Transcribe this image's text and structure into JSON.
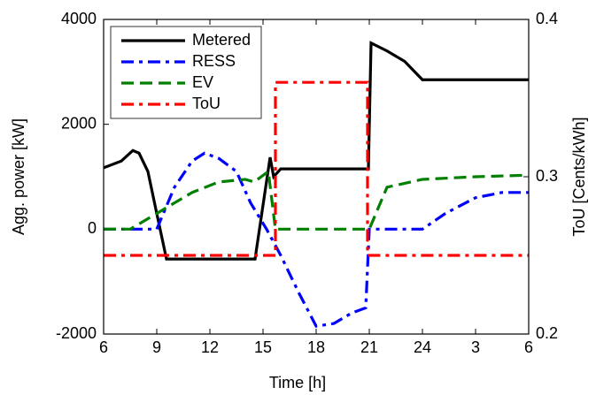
{
  "chart_data": {
    "type": "line",
    "xlabel": "Time [h]",
    "ylabel": "Agg. power [kW]",
    "y2label": "ToU [Cents/kWh]",
    "xlim": [
      6,
      30
    ],
    "xticks": [
      6,
      9,
      12,
      15,
      18,
      21,
      24,
      {
        "value": 27,
        "label": "3"
      },
      {
        "value": 30,
        "label": "6"
      }
    ],
    "ylim": [
      -2000,
      4000
    ],
    "yticks": [
      -2000,
      0,
      2000,
      4000
    ],
    "y2lim": [
      0.2,
      0.4
    ],
    "y2ticks": [
      0.2,
      0.3,
      0.4
    ],
    "legend": "upper left",
    "series": [
      {
        "name": "Metered",
        "color": "#000000",
        "dash": "solid",
        "x": [
          6,
          7,
          7.65,
          8,
          8.5,
          9,
          9.55,
          14.55,
          15.4,
          15.6,
          16,
          20.95,
          21.1,
          22,
          23,
          24,
          30
        ],
        "values": [
          1170,
          1300,
          1500,
          1450,
          1100,
          300,
          -570,
          -570,
          1370,
          1000,
          1150,
          1150,
          3550,
          3400,
          3200,
          2850,
          2850
        ]
      },
      {
        "name": "RESS",
        "color": "#0000ff",
        "dash": "dashdot",
        "x": [
          6,
          9,
          10,
          11,
          11.7,
          12.5,
          13.5,
          14.3,
          15.2,
          16,
          17,
          18,
          19,
          20,
          20.8,
          21,
          24,
          25.3,
          27,
          28.5,
          30
        ],
        "values": [
          0,
          0,
          800,
          1300,
          1450,
          1350,
          1100,
          500,
          0,
          -500,
          -1200,
          -1850,
          -1800,
          -1600,
          -1500,
          0,
          0,
          300,
          600,
          700,
          700
        ]
      },
      {
        "name": "EV",
        "color": "#007f00",
        "dash": "dashed",
        "x": [
          6,
          7.5,
          8.5,
          10,
          11,
          12.5,
          14,
          14.5,
          15.3,
          15.7,
          21,
          22,
          24,
          27,
          30
        ],
        "values": [
          0,
          0,
          200,
          500,
          700,
          900,
          950,
          900,
          1100,
          0,
          0,
          800,
          950,
          1000,
          1030
        ]
      },
      {
        "name": "ToU",
        "color": "#ff0000",
        "dash": "dashdot",
        "axis": "y2",
        "x": [
          6,
          15.7,
          15.7,
          20.9,
          20.9,
          30
        ],
        "values": [
          0.25,
          0.25,
          0.36,
          0.36,
          0.25,
          0.25
        ]
      }
    ]
  }
}
